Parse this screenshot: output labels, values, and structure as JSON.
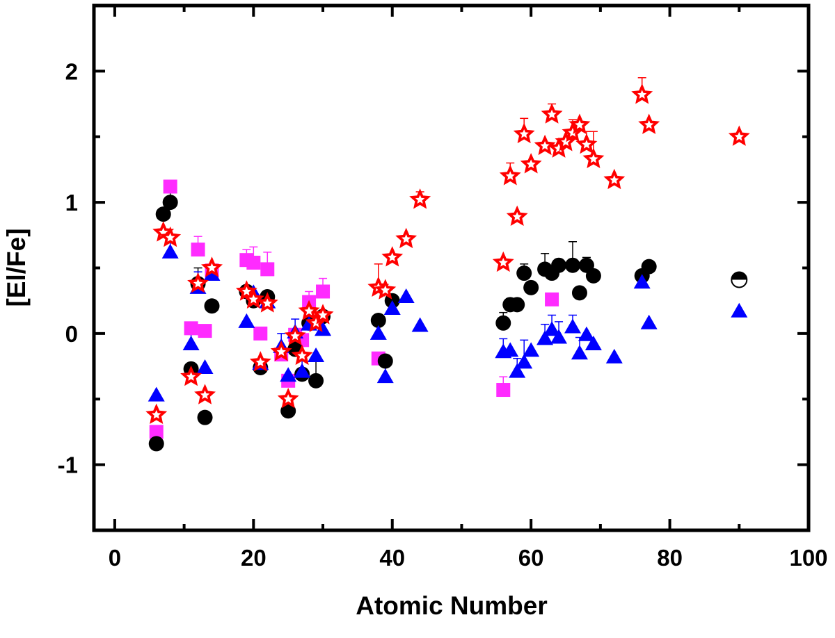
{
  "chart_data": {
    "type": "scatter",
    "title": "",
    "xlabel": "Atomic Number",
    "ylabel": "[El/Fe]",
    "xlim": [
      -3,
      100
    ],
    "ylim": [
      -1.5,
      2.5
    ],
    "xticks": [
      0,
      20,
      40,
      60,
      80,
      100
    ],
    "yticks": [
      -1,
      0,
      1,
      2
    ],
    "xtick_labels": [
      "0",
      "20",
      "40",
      "60",
      "80",
      "100"
    ],
    "ytick_labels": [
      "-1",
      "0",
      "1",
      "2"
    ],
    "grid": false,
    "legend": "none",
    "series": [
      {
        "marker": "square",
        "color": "#ff2bff",
        "points": [
          {
            "x": 6,
            "y": -0.75
          },
          {
            "x": 8,
            "y": 1.12
          },
          {
            "x": 11,
            "y": 0.04
          },
          {
            "x": 12,
            "y": 0.64,
            "err": 0.1
          },
          {
            "x": 13,
            "y": 0.02
          },
          {
            "x": 14,
            "y": 0.48
          },
          {
            "x": 19,
            "y": 0.56,
            "err": 0.08
          },
          {
            "x": 20,
            "y": 0.54,
            "err": 0.12
          },
          {
            "x": 21,
            "y": 0.0
          },
          {
            "x": 22,
            "y": 0.49,
            "err": 0.13
          },
          {
            "x": 24,
            "y": -0.16
          },
          {
            "x": 25,
            "y": -0.36
          },
          {
            "x": 26,
            "y": -0.01
          },
          {
            "x": 27,
            "y": -0.05
          },
          {
            "x": 28,
            "y": 0.24,
            "err": 0.08
          },
          {
            "x": 30,
            "y": 0.32,
            "err": 0.1
          },
          {
            "x": 38,
            "y": -0.19
          },
          {
            "x": 56,
            "y": -0.43,
            "err": 0.1
          },
          {
            "x": 63,
            "y": 0.26
          }
        ]
      },
      {
        "marker": "circle",
        "color": "#000000",
        "points": [
          {
            "x": 6,
            "y": -0.84
          },
          {
            "x": 7,
            "y": 0.91
          },
          {
            "x": 8,
            "y": 1.0,
            "err": 0.14
          },
          {
            "x": 11,
            "y": -0.27
          },
          {
            "x": 12,
            "y": 0.38,
            "err": 0.12
          },
          {
            "x": 13,
            "y": -0.64
          },
          {
            "x": 14,
            "y": 0.21
          },
          {
            "x": 19,
            "y": 0.32
          },
          {
            "x": 20,
            "y": 0.25
          },
          {
            "x": 21,
            "y": -0.26
          },
          {
            "x": 22,
            "y": 0.28
          },
          {
            "x": 25,
            "y": -0.59
          },
          {
            "x": 26,
            "y": -0.12
          },
          {
            "x": 27,
            "y": -0.31
          },
          {
            "x": 28,
            "y": 0.08
          },
          {
            "x": 29,
            "y": -0.36,
            "err": 0.15
          },
          {
            "x": 30,
            "y": 0.13
          },
          {
            "x": 38,
            "y": 0.1
          },
          {
            "x": 39,
            "y": -0.21
          },
          {
            "x": 40,
            "y": 0.25
          },
          {
            "x": 56,
            "y": 0.08,
            "err": 0.08
          },
          {
            "x": 57,
            "y": 0.22
          },
          {
            "x": 58,
            "y": 0.22
          },
          {
            "x": 59,
            "y": 0.46,
            "err": 0.07
          },
          {
            "x": 60,
            "y": 0.35
          },
          {
            "x": 62,
            "y": 0.49,
            "err": 0.12
          },
          {
            "x": 63,
            "y": 0.46
          },
          {
            "x": 64,
            "y": 0.52
          },
          {
            "x": 66,
            "y": 0.52,
            "err": 0.18
          },
          {
            "x": 67,
            "y": 0.31
          },
          {
            "x": 68,
            "y": 0.52,
            "err": 0.06
          },
          {
            "x": 69,
            "y": 0.44
          },
          {
            "x": 76,
            "y": 0.44
          },
          {
            "x": 77,
            "y": 0.51
          }
        ]
      },
      {
        "marker": "half-circle",
        "color": "#000000",
        "points": [
          {
            "x": 90,
            "y": 0.41
          }
        ]
      },
      {
        "marker": "triangle",
        "color": "#0000ff",
        "points": [
          {
            "x": 6,
            "y": -0.47
          },
          {
            "x": 8,
            "y": 0.62,
            "err": 0.08
          },
          {
            "x": 11,
            "y": -0.08,
            "err": 0.08
          },
          {
            "x": 12,
            "y": 0.35,
            "err": 0.12
          },
          {
            "x": 13,
            "y": -0.26
          },
          {
            "x": 14,
            "y": 0.45
          },
          {
            "x": 19,
            "y": 0.09
          },
          {
            "x": 20,
            "y": 0.31
          },
          {
            "x": 21,
            "y": -0.23
          },
          {
            "x": 22,
            "y": 0.24
          },
          {
            "x": 24,
            "y": -0.1,
            "err": 0.1
          },
          {
            "x": 25,
            "y": -0.32
          },
          {
            "x": 26,
            "y": 0.01,
            "err": 0.1
          },
          {
            "x": 27,
            "y": -0.29,
            "err": 0.1
          },
          {
            "x": 28,
            "y": 0.07,
            "err": 0.09
          },
          {
            "x": 29,
            "y": -0.17
          },
          {
            "x": 30,
            "y": 0.03
          },
          {
            "x": 38,
            "y": 0.0
          },
          {
            "x": 39,
            "y": -0.33,
            "err": 0.08
          },
          {
            "x": 40,
            "y": 0.19
          },
          {
            "x": 42,
            "y": 0.28
          },
          {
            "x": 44,
            "y": 0.06
          },
          {
            "x": 56,
            "y": -0.14,
            "err": 0.1
          },
          {
            "x": 57,
            "y": -0.13
          },
          {
            "x": 58,
            "y": -0.29,
            "err": 0.1
          },
          {
            "x": 59,
            "y": -0.22,
            "err": 0.17
          },
          {
            "x": 60,
            "y": -0.13
          },
          {
            "x": 62,
            "y": -0.04,
            "err": 0.11
          },
          {
            "x": 63,
            "y": 0.03,
            "err": 0.11
          },
          {
            "x": 64,
            "y": -0.03,
            "err": 0.12
          },
          {
            "x": 66,
            "y": 0.05,
            "err": 0.09
          },
          {
            "x": 67,
            "y": -0.15,
            "err": 0.12
          },
          {
            "x": 68,
            "y": -0.01
          },
          {
            "x": 69,
            "y": -0.08
          },
          {
            "x": 72,
            "y": -0.18
          },
          {
            "x": 76,
            "y": 0.39
          },
          {
            "x": 77,
            "y": 0.08
          },
          {
            "x": 90,
            "y": 0.17
          }
        ]
      },
      {
        "marker": "star",
        "color": "#ff0000",
        "points": [
          {
            "x": 6,
            "y": -0.62
          },
          {
            "x": 7,
            "y": 0.77
          },
          {
            "x": 8,
            "y": 0.73
          },
          {
            "x": 11,
            "y": -0.33
          },
          {
            "x": 12,
            "y": 0.38
          },
          {
            "x": 13,
            "y": -0.47
          },
          {
            "x": 14,
            "y": 0.5
          },
          {
            "x": 19,
            "y": 0.32
          },
          {
            "x": 20,
            "y": 0.26
          },
          {
            "x": 21,
            "y": -0.22
          },
          {
            "x": 22,
            "y": 0.23
          },
          {
            "x": 24,
            "y": -0.14
          },
          {
            "x": 25,
            "y": -0.5
          },
          {
            "x": 26,
            "y": -0.02
          },
          {
            "x": 27,
            "y": -0.17
          },
          {
            "x": 28,
            "y": 0.17
          },
          {
            "x": 29,
            "y": 0.08
          },
          {
            "x": 30,
            "y": 0.14
          },
          {
            "x": 38,
            "y": 0.35,
            "err": 0.18
          },
          {
            "x": 39,
            "y": 0.33
          },
          {
            "x": 40,
            "y": 0.58
          },
          {
            "x": 42,
            "y": 0.72
          },
          {
            "x": 44,
            "y": 1.02,
            "err": 0.06
          },
          {
            "x": 56,
            "y": 0.54
          },
          {
            "x": 57,
            "y": 1.2,
            "err": 0.1
          },
          {
            "x": 58,
            "y": 0.89
          },
          {
            "x": 59,
            "y": 1.52,
            "err": 0.12
          },
          {
            "x": 60,
            "y": 1.29
          },
          {
            "x": 62,
            "y": 1.43
          },
          {
            "x": 63,
            "y": 1.67,
            "err": 0.08
          },
          {
            "x": 64,
            "y": 1.41
          },
          {
            "x": 65,
            "y": 1.46
          },
          {
            "x": 66,
            "y": 1.53,
            "err": 0.1
          },
          {
            "x": 67,
            "y": 1.59
          },
          {
            "x": 68,
            "y": 1.44,
            "err": 0.1
          },
          {
            "x": 69,
            "y": 1.33,
            "err": 0.21
          },
          {
            "x": 72,
            "y": 1.17
          },
          {
            "x": 76,
            "y": 1.82,
            "err": 0.13
          },
          {
            "x": 77,
            "y": 1.59
          },
          {
            "x": 90,
            "y": 1.5
          }
        ]
      }
    ]
  }
}
